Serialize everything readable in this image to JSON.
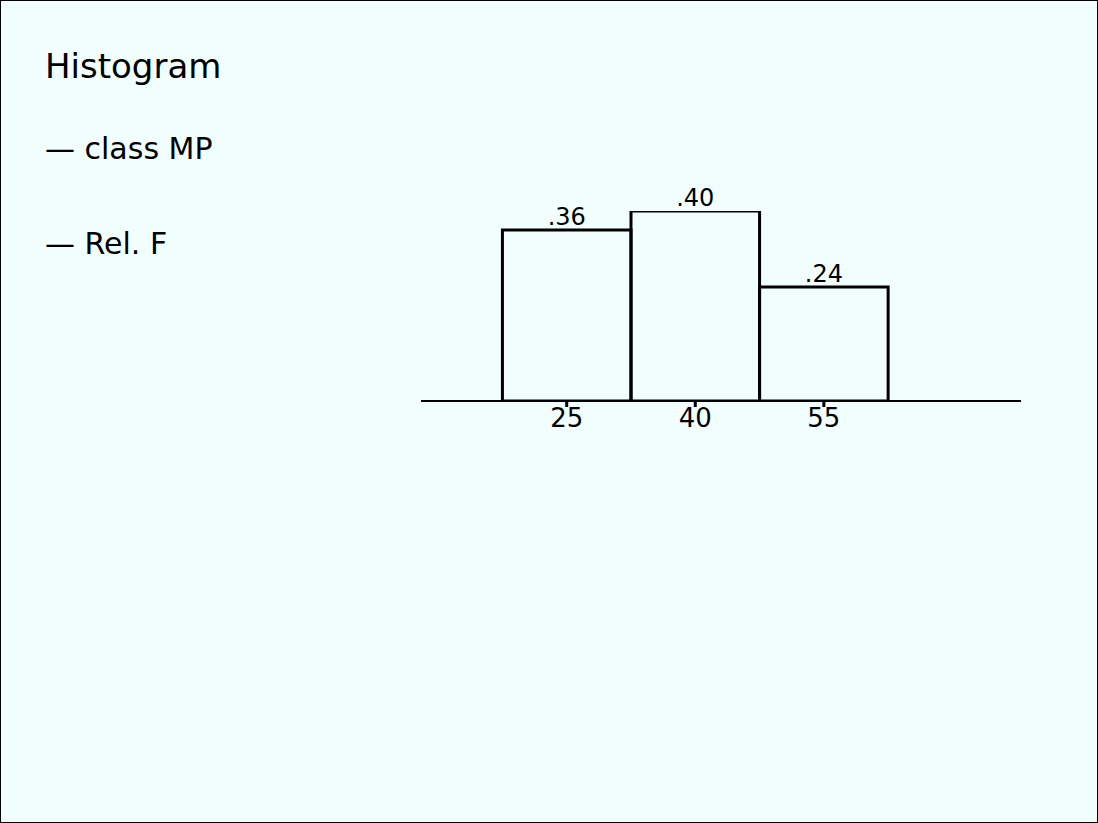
{
  "chart_data": {
    "type": "histogram",
    "title": "Histogram",
    "annotations": [
      "— class MP",
      "— Rel. F"
    ],
    "bins": [
      17.5,
      32.5,
      47.5,
      62.5
    ],
    "values": [
      0.36,
      0.4,
      0.24
    ],
    "value_labels": [
      ".36",
      ".40",
      ".24"
    ],
    "data_labels": true,
    "xlim": [
      8,
      78
    ],
    "xticks": [
      25,
      40,
      55
    ],
    "tick_labels": "x",
    "color": "#000000"
  }
}
